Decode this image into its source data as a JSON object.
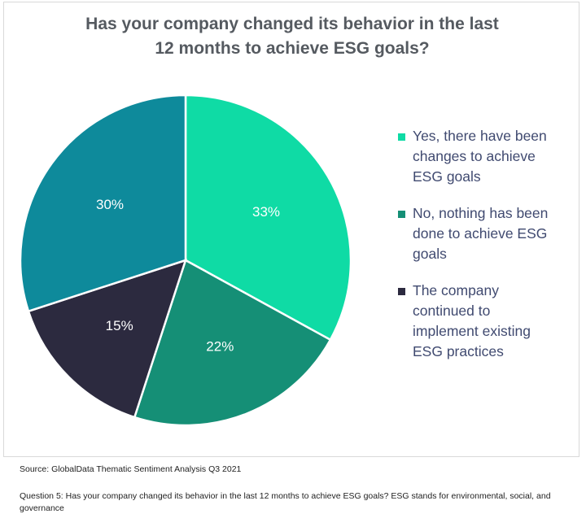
{
  "chart_data": {
    "type": "pie",
    "title_lines": [
      "Has your company changed its behavior in the last",
      "12 months to achieve ESG goals?"
    ],
    "slices": [
      {
        "label": "Yes, there have been changes to achieve ESG goals",
        "value": 33,
        "display": "33%",
        "color": "#0fdba5"
      },
      {
        "label": "No, nothing has been done to achieve ESG goals",
        "value": 22,
        "display": "22%",
        "color": "#158f76"
      },
      {
        "label": "The company continued to implement existing ESG practices",
        "value": 15,
        "display": "15%",
        "color": "#2c2a3f"
      },
      {
        "label": "",
        "value": 30,
        "display": "30%",
        "color": "#0e8a9b"
      }
    ],
    "legend_placement": "right"
  },
  "legend": [
    {
      "lines": [
        "Yes, there have been",
        "changes to achieve",
        "ESG goals"
      ]
    },
    {
      "lines": [
        "No, nothing has been",
        "done to achieve ESG",
        "goals"
      ]
    },
    {
      "lines": [
        "The company",
        "continued to",
        "implement existing",
        "ESG practices"
      ]
    }
  ],
  "footer": {
    "source": "Source: GlobalData Thematic Sentiment Analysis Q3 2021",
    "question": "Question 5: Has your company changed its behavior in the last 12 months to achieve ESG goals? ESG stands for environmental, social, and governance"
  }
}
